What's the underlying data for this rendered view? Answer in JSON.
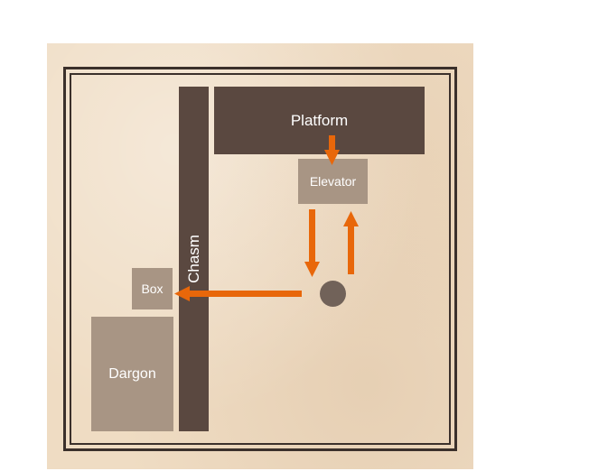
{
  "map": {
    "platform": "Platform",
    "elevator": "Elevator",
    "chasm": "Chasm",
    "box": "Box",
    "dargon": "Dargon"
  },
  "colors": {
    "parchment": "#efdcc3",
    "frame": "#3b302b",
    "dark_block": "#5a4840",
    "light_block": "#a89584",
    "arrow": "#e8670a",
    "player": "#716259"
  },
  "icons": [
    "player-token",
    "arrow-down",
    "arrow-up",
    "arrow-left"
  ]
}
